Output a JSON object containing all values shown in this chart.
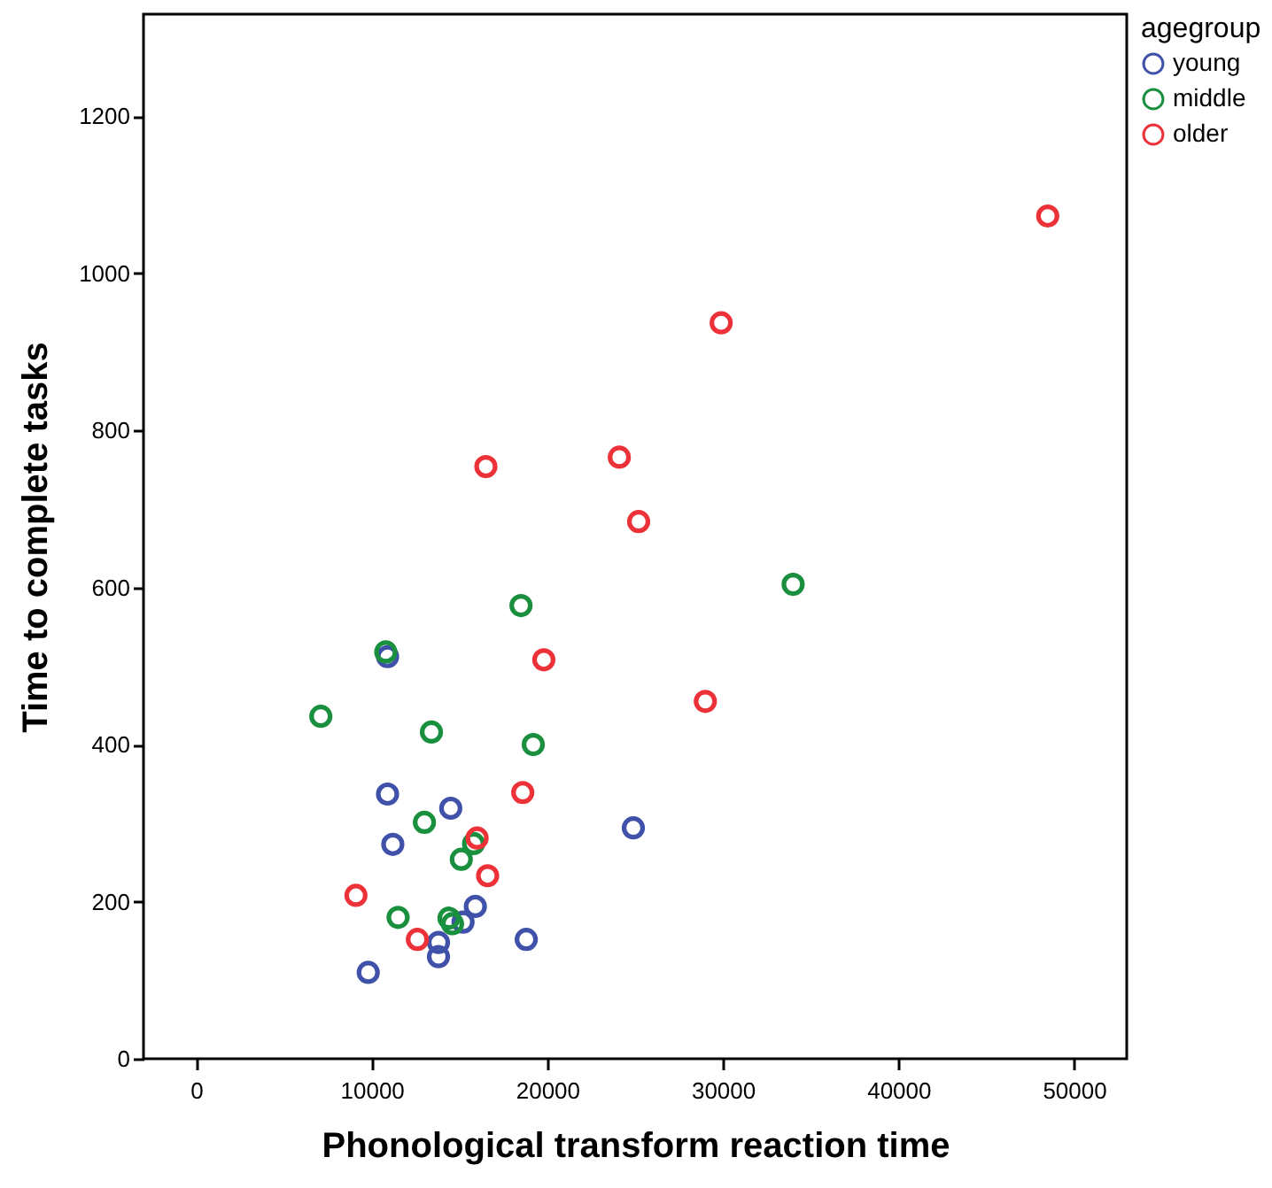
{
  "chart_data": {
    "type": "scatter",
    "xlabel": "Phonological transform reaction time",
    "ylabel": "Time to complete tasks",
    "legend_title": "agegroup",
    "legend": "top right",
    "marker": "circle",
    "grid": false,
    "xlim": [
      -3000,
      53000
    ],
    "ylim": [
      0,
      1330
    ],
    "xticks": [
      0,
      10000,
      20000,
      30000,
      40000,
      50000
    ],
    "yticks": [
      0,
      200,
      400,
      600,
      800,
      1000,
      1200
    ],
    "series": [
      {
        "name": "young",
        "color": "#3f51a8",
        "x": [
          10900,
          10900,
          14500,
          24900,
          11200,
          15900,
          15200,
          13800,
          18800,
          13800,
          9800
        ],
        "values": [
          512,
          337,
          319,
          294,
          273,
          194,
          174,
          148,
          152,
          130,
          110
        ]
      },
      {
        "name": "middle",
        "color": "#1a8f3e",
        "x": [
          10800,
          18500,
          7100,
          13400,
          19200,
          13000,
          15800,
          15100,
          11500,
          14400,
          14600,
          34000
        ],
        "values": [
          518,
          577,
          436,
          416,
          400,
          301,
          274,
          254,
          180,
          179,
          172,
          604
        ]
      },
      {
        "name": "older",
        "color": "#ec3238",
        "x": [
          19800,
          18600,
          16000,
          16600,
          9100,
          12600,
          48500,
          29900,
          16500,
          24100,
          25200,
          29000
        ],
        "values": [
          508,
          339,
          281,
          233,
          208,
          152,
          1073,
          937,
          754,
          766,
          684,
          455
        ]
      }
    ]
  }
}
